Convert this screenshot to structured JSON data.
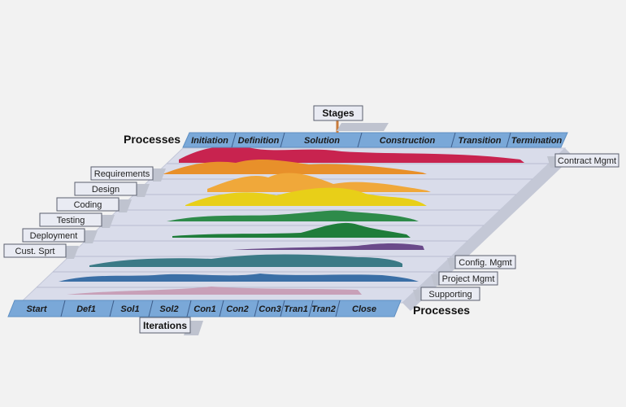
{
  "colors": {
    "background": "#f2f2f2",
    "bar_blue": "#7aa8d8",
    "plane_fill": "#d9dcea",
    "label_box": "#e9ebf3",
    "contract": "#c8234f",
    "requirements": "#e8902a",
    "design": "#f0a83a",
    "coding": "#e8cf18",
    "testing": "#2e8b4a",
    "deployment": "#1f7d3a",
    "cust_support": "#6a4a8a",
    "config": "#3b7a86",
    "project": "#3b6fa6",
    "supporting": "#c8a0b8"
  },
  "stages": {
    "tag": "Stages",
    "row_label": "Processes",
    "phases": [
      "Initiation",
      "Definition",
      "Solution",
      "Construction",
      "Transition",
      "Termination"
    ]
  },
  "iterations": {
    "tag": "Iterations",
    "row_label": "Processes",
    "items": [
      "Start",
      "Def1",
      "Sol1",
      "Sol2",
      "Con1",
      "Con2",
      "Con3",
      "Tran1",
      "Tran2",
      "Close"
    ]
  },
  "left_processes": [
    "Requirements",
    "Design",
    "Coding",
    "Testing",
    "Deployment",
    "Cust. Sprt"
  ],
  "right_processes": {
    "top": "Contract Mgmt",
    "bottom": [
      "Config. Mgmt",
      "Project Mgmt",
      "Supporting"
    ]
  }
}
